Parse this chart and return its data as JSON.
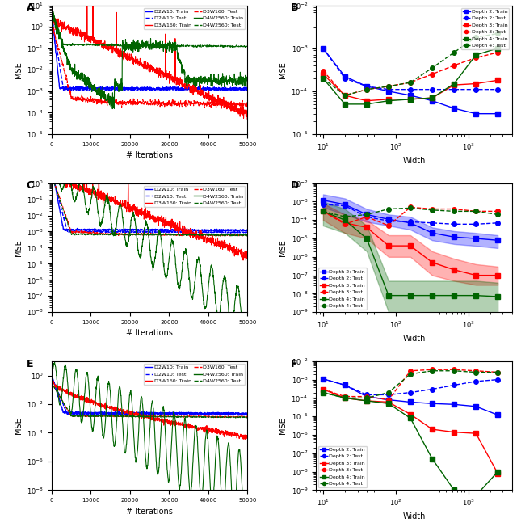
{
  "colors": {
    "blue": "#0000FF",
    "red": "#FF0000",
    "green": "#006400"
  },
  "widths": [
    10,
    20,
    40,
    80,
    160,
    320,
    640,
    1280,
    2560
  ],
  "B_d2_train": [
    0.001,
    0.00022,
    0.00013,
    0.0001,
    8e-05,
    6e-05,
    4e-05,
    3e-05,
    3e-05
  ],
  "B_d2_test": [
    0.001,
    0.0002,
    0.00013,
    0.00011,
    0.00011,
    0.00011,
    0.00011,
    0.00011,
    0.00011
  ],
  "B_d3_train": [
    0.00025,
    8e-05,
    6e-05,
    6.5e-05,
    6.5e-05,
    7e-05,
    0.00014,
    0.00015,
    0.00018
  ],
  "B_d3_test": [
    0.0003,
    8e-05,
    0.00011,
    0.00013,
    0.00016,
    0.00025,
    0.0004,
    0.0006,
    0.0008
  ],
  "B_d4_train": [
    0.0002,
    5e-05,
    5e-05,
    6e-05,
    6.5e-05,
    7e-05,
    0.00015,
    0.0007,
    0.001
  ],
  "B_d4_test": [
    0.0002,
    8e-05,
    0.00011,
    0.00013,
    0.00016,
    0.00035,
    0.0008,
    0.0018,
    0.0022
  ],
  "D_d2_train": [
    0.0012,
    0.0007,
    0.0002,
    0.00011,
    7e-05,
    2e-05,
    1.2e-05,
    1e-05,
    8e-06
  ],
  "D_d2_test": [
    0.0007,
    0.0006,
    0.00015,
    9e-05,
    8e-05,
    7e-05,
    6e-05,
    6e-05,
    7e-05
  ],
  "D_d3_train": [
    0.0003,
    7e-05,
    4e-05,
    4e-06,
    4e-06,
    5e-07,
    2e-07,
    1e-07,
    1e-07
  ],
  "D_d3_test": [
    0.0003,
    6e-05,
    0.00015,
    5e-05,
    0.0005,
    0.0004,
    0.0004,
    0.0003,
    0.0003
  ],
  "D_d4_train": [
    0.0003,
    0.0001,
    1e-05,
    8e-09,
    8e-09,
    8e-09,
    8e-09,
    8e-09,
    7e-09
  ],
  "D_d4_test": [
    0.0003,
    0.00015,
    0.0002,
    0.0004,
    0.00045,
    0.00035,
    0.0003,
    0.0003,
    0.0002
  ],
  "D_d2_lo": [
    0.0005,
    0.0002,
    8e-05,
    5e-05,
    3e-05,
    8e-06,
    5e-06,
    4e-06,
    3e-06
  ],
  "D_d2_hi": [
    0.0025,
    0.0015,
    0.0004,
    0.0002,
    0.00015,
    4e-05,
    2.5e-05,
    2e-05,
    1.5e-05
  ],
  "D_d3_lo": [
    0.0001,
    2e-05,
    1e-05,
    1e-06,
    1e-06,
    1e-07,
    5e-08,
    3e-08,
    3e-08
  ],
  "D_d3_hi": [
    0.0008,
    0.0002,
    0.0001,
    1.5e-05,
    1.5e-05,
    2e-06,
    8e-07,
    4e-07,
    3e-07
  ],
  "D_d4_lo": [
    5e-05,
    2e-05,
    2e-06,
    1e-09,
    1e-09,
    1e-09,
    1e-09,
    1e-09,
    1e-09
  ],
  "D_d4_hi": [
    0.001,
    0.0004,
    5e-05,
    5e-08,
    5e-08,
    5e-08,
    5e-08,
    5e-08,
    4e-08
  ],
  "F_d2_train": [
    0.0011,
    0.0005,
    0.00012,
    8e-05,
    6e-05,
    5e-05,
    4.5e-05,
    3.5e-05,
    1.2e-05
  ],
  "F_d2_test": [
    0.0011,
    0.0005,
    0.00015,
    0.00015,
    0.0002,
    0.0003,
    0.0005,
    0.0008,
    0.001
  ],
  "F_d3_train": [
    0.0003,
    0.0001,
    7e-05,
    6e-05,
    1.3e-05,
    2e-06,
    1.4e-06,
    1.2e-06,
    8e-09
  ],
  "F_d3_test": [
    0.0003,
    0.00012,
    0.00012,
    8e-05,
    0.003,
    0.0035,
    0.0035,
    0.003,
    0.0025
  ],
  "F_d4_train": [
    0.0002,
    0.0001,
    7e-05,
    5e-05,
    8e-06,
    5e-08,
    1e-09,
    5e-10,
    1e-08
  ],
  "F_d4_test": [
    0.0002,
    0.0001,
    0.0001,
    0.0002,
    0.002,
    0.003,
    0.003,
    0.0025,
    0.0025
  ]
}
